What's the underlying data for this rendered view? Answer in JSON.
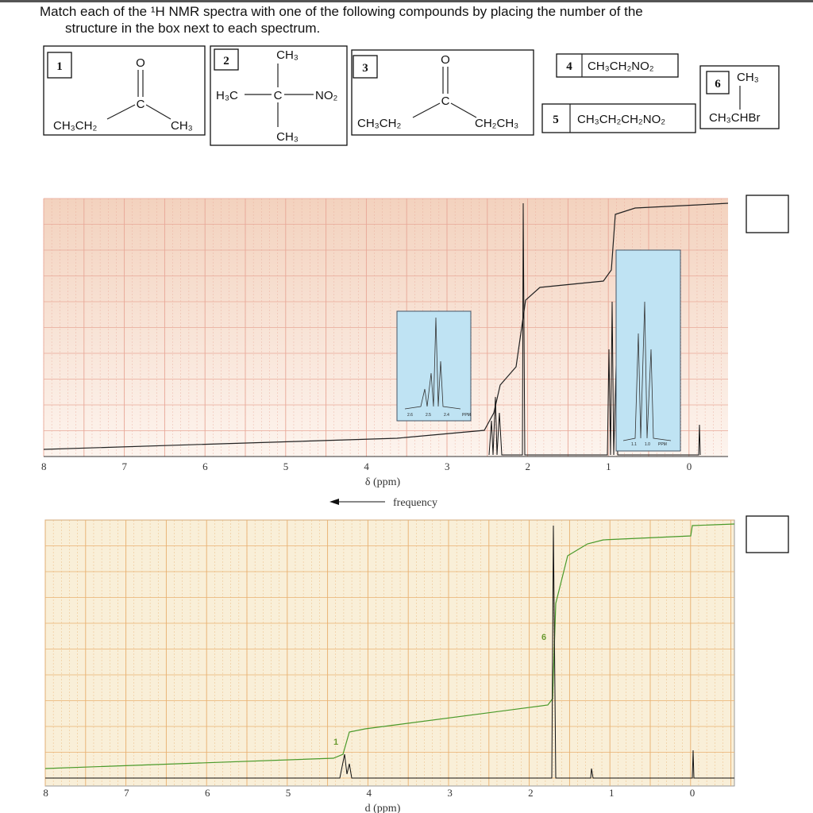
{
  "question": "Match each of the ¹H NMR spectra with one of the following compounds by placing the number of the structure in the box next to each spectrum.",
  "compounds": [
    {
      "number": "1",
      "oxygen": "O",
      "carbon": "C",
      "left": "CH₃CH₂",
      "right": "CH₃"
    },
    {
      "number": "2",
      "top": "CH₃",
      "left": "H₃C",
      "carbon": "C",
      "right": "NO₂",
      "bottom": "CH₃"
    },
    {
      "number": "3",
      "oxygen": "O",
      "carbon": "C",
      "left": "CH₃CH₂",
      "right": "CH₂CH₃"
    },
    {
      "number": "4",
      "formula": "CH₃CH₂NO₂"
    },
    {
      "number": "5",
      "formula": "CH₃CH₂CH₂NO₂"
    },
    {
      "number": "6",
      "top": "CH₃",
      "formula": "CH₃CHBr"
    }
  ],
  "spectra": [
    {
      "axis_ticks": [
        8,
        7,
        6,
        5,
        4,
        3,
        2,
        1,
        0
      ],
      "axis_label": "δ (ppm)",
      "direction_label": "frequency",
      "insets": [
        [
          "2.6",
          "2.5",
          "2.4",
          "PPM"
        ],
        [
          "1.1",
          "1.0",
          "PPM"
        ]
      ]
    },
    {
      "axis_ticks": [
        8,
        7,
        6,
        5,
        4,
        3,
        2,
        1,
        0
      ],
      "axis_label": "d (ppm)",
      "integration_labels": [
        "1",
        "6"
      ]
    }
  ]
}
